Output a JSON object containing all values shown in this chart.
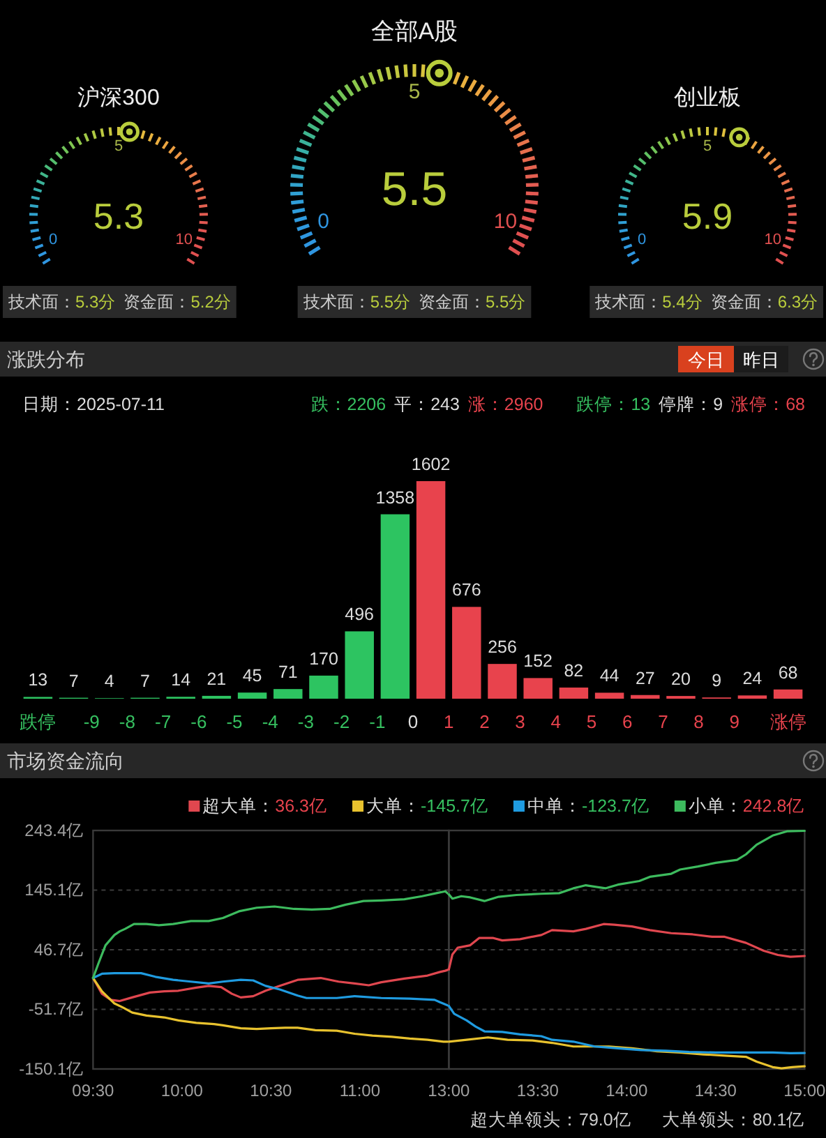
{
  "chart_data": [
    {
      "type": "other",
      "title": "沪深300",
      "values": [
        5.3
      ],
      "data_labels": true,
      "annotations": [
        "0",
        "5",
        "10",
        "技术面：5.3分",
        "资金面：5.2分"
      ]
    },
    {
      "type": "other",
      "title": "全部A股",
      "values": [
        5.5
      ],
      "data_labels": true,
      "annotations": [
        "0",
        "5",
        "10",
        "技术面：5.5分",
        "资金面：5.5分"
      ]
    },
    {
      "type": "other",
      "title": "创业板",
      "values": [
        5.9
      ],
      "data_labels": true,
      "annotations": [
        "0",
        "5",
        "10",
        "技术面：5.4分",
        "资金面：6.3分"
      ]
    },
    {
      "type": "bar",
      "title": "涨跌分布",
      "x": [
        -10.5,
        -9.5,
        -8.5,
        -7.5,
        -6.5,
        -5.5,
        -4.5,
        -3.5,
        -2.5,
        -1.5,
        -0.5,
        0.5,
        1.5,
        2.5,
        3.5,
        4.5,
        5.5,
        6.5,
        7.5,
        8.5,
        9.5,
        10.5
      ],
      "values": [
        13,
        7,
        4,
        7,
        14,
        21,
        45,
        71,
        170,
        496,
        1358,
        1602,
        676,
        256,
        152,
        82,
        44,
        27,
        20,
        9,
        24,
        68
      ],
      "colors": [
        "#2dc461",
        "#2dc461",
        "#2dc461",
        "#2dc461",
        "#2dc461",
        "#2dc461",
        "#2dc461",
        "#2dc461",
        "#2dc461",
        "#2dc461",
        "#2dc461",
        "#e8434d",
        "#e8434d",
        "#e8434d",
        "#e8434d",
        "#e8434d",
        "#e8434d",
        "#e8434d",
        "#e8434d",
        "#e8434d",
        "#e8434d",
        "#e8434d"
      ],
      "xlim": [
        -10.5,
        10.5
      ],
      "xticks": [
        {
          "value": -10.5,
          "label": "跌停"
        },
        -9,
        -8,
        -7,
        -6,
        -5,
        -4,
        -3,
        -2,
        -1,
        0,
        1,
        2,
        3,
        4,
        5,
        6,
        7,
        8,
        9,
        {
          "value": 10.5,
          "label": "涨停"
        }
      ],
      "data_labels": true,
      "annotations": [
        "今日",
        "昨日",
        "日期：2025-07-11",
        "跌：2206",
        "平：243",
        "涨：2960",
        "跌停：13",
        "停牌：9",
        "涨停：68"
      ]
    },
    {
      "type": "line",
      "title": "市场资金流向",
      "series": [
        {
          "name": "超大单：36.3亿",
          "color": "#e0474f",
          "x": [
            9.5,
            9.55,
            9.6,
            9.65,
            9.72,
            9.82,
            9.9,
            9.98,
            10.08,
            10.15,
            10.22,
            10.28,
            10.33,
            10.4,
            10.47,
            10.55,
            10.65,
            10.78,
            10.88,
            10.97,
            11.05,
            11.12,
            11.25,
            11.38,
            11.45,
            11.48,
            11.5
          ],
          "values": [
            0,
            -26,
            -36,
            -38,
            -32,
            -24,
            -22,
            -21,
            -16,
            -13,
            -15,
            -26,
            -32,
            -30,
            -21,
            -13,
            -3,
            0,
            -6,
            -9,
            -12,
            -7,
            -1,
            4,
            10,
            12,
            14
          ]
        },
        {
          "name": "大单：-145.7亿",
          "color": "#e8c22e",
          "x": [
            9.5,
            9.55,
            9.62,
            9.67,
            9.72,
            9.8,
            9.9,
            9.98,
            10.08,
            10.18,
            10.23,
            10.33,
            10.42,
            10.5,
            10.58,
            10.65,
            10.75,
            10.87,
            10.97,
            11.07,
            11.18,
            11.28,
            11.38,
            11.47,
            11.5
          ],
          "values": [
            0,
            -22,
            -42,
            -49,
            -57,
            -62,
            -65,
            -70,
            -74,
            -76,
            -78,
            -83,
            -84,
            -83,
            -82,
            -82,
            -86,
            -87,
            -92,
            -95,
            -97,
            -100,
            -102,
            -105,
            -105
          ]
        },
        {
          "name": "中单：-123.7亿",
          "color": "#1f9be0",
          "x": [
            9.5,
            9.55,
            9.62,
            9.72,
            9.77,
            9.85,
            9.95,
            10.05,
            10.15,
            10.23,
            10.33,
            10.4,
            10.47,
            10.55,
            10.65,
            10.7,
            10.87,
            10.97,
            11.12,
            11.28,
            11.42,
            11.45,
            11.5
          ],
          "values": [
            0,
            7,
            8,
            8,
            8,
            2,
            -3,
            -6,
            -9,
            -6,
            -3,
            -4,
            -13,
            -19,
            -29,
            -33,
            -33,
            -30,
            -33,
            -34,
            -36,
            -40,
            -46
          ]
        },
        {
          "name": "小单：242.8亿",
          "color": "#3dbb5e",
          "x": [
            9.5,
            9.53,
            9.57,
            9.62,
            9.65,
            9.68,
            9.73,
            9.8,
            9.87,
            9.95,
            10.05,
            10.15,
            10.23,
            10.32,
            10.42,
            10.52,
            10.63,
            10.73,
            10.83,
            10.92,
            11.02,
            11.12,
            11.25,
            11.35,
            11.43,
            11.48,
            11.5
          ],
          "values": [
            0,
            24,
            54,
            71,
            77,
            81,
            89,
            89,
            87,
            89,
            94,
            94,
            99,
            110,
            116,
            118,
            114,
            113,
            114,
            121,
            127,
            128,
            130,
            135,
            140,
            143,
            138
          ]
        }
      ],
      "xlim": [
        9.5,
        11.5
      ],
      "xticks": [
        {
          "value": 9.5,
          "label": "09:30"
        },
        {
          "value": 10,
          "label": "10:00"
        },
        {
          "value": 10.5,
          "label": "10:30"
        },
        {
          "value": 11,
          "label": "11:00"
        }
      ],
      "ylim": [
        -150.1,
        243.4
      ],
      "yticks": [
        {
          "value": -150.1,
          "label": "-150.1亿"
        },
        {
          "value": -51.7,
          "label": "-51.7亿"
        },
        {
          "value": 46.7,
          "label": "46.7亿"
        },
        {
          "value": 145.1,
          "label": "145.1亿"
        },
        {
          "value": 243.4,
          "label": "243.4亿"
        }
      ],
      "grid": "y",
      "legend": "top right"
    },
    {
      "type": "line",
      "series": [
        {
          "color": "#e0474f",
          "x": [
            13,
            13.02,
            13.05,
            13.12,
            13.17,
            13.25,
            13.3,
            13.4,
            13.52,
            13.58,
            13.7,
            13.77,
            13.87,
            13.93,
            14.03,
            14.13,
            14.25,
            14.37,
            14.48,
            14.55,
            14.67,
            14.77,
            14.85,
            14.92,
            15
          ],
          "values": [
            14,
            39,
            50,
            54,
            66,
            66,
            62,
            64,
            71,
            79,
            77,
            81,
            89,
            88,
            85,
            79,
            74,
            72,
            68,
            68,
            58,
            45,
            38,
            35,
            36.3
          ]
        },
        {
          "color": "#e8c22e",
          "x": [
            13,
            13.1,
            13.22,
            13.33,
            13.47,
            13.58,
            13.7,
            13.8,
            13.9,
            14.03,
            14.17,
            14.3,
            14.43,
            14.55,
            14.67,
            14.73,
            14.82,
            14.87,
            14.93,
            15
          ],
          "values": [
            -105,
            -102,
            -98,
            -102,
            -103,
            -107,
            -113,
            -113,
            -113,
            -116,
            -121,
            -123,
            -126,
            -128,
            -130,
            -138,
            -147,
            -149,
            -147,
            -145.7
          ]
        },
        {
          "color": "#1f9be0",
          "x": [
            13,
            13.03,
            13.1,
            13.15,
            13.2,
            13.3,
            13.4,
            13.52,
            13.58,
            13.7,
            13.82,
            13.95,
            14.08,
            14.22,
            14.35,
            14.5,
            14.67,
            14.82,
            14.92,
            15
          ],
          "values": [
            -46,
            -59,
            -70,
            -80,
            -88,
            -89,
            -93,
            -96,
            -102,
            -105,
            -113,
            -116,
            -119,
            -120,
            -122,
            -123,
            -123,
            -123,
            -124,
            -123.7
          ]
        },
        {
          "color": "#3dbb5e",
          "x": [
            13,
            13.02,
            13.07,
            13.12,
            13.2,
            13.28,
            13.38,
            13.52,
            13.62,
            13.7,
            13.77,
            13.88,
            13.95,
            14.07,
            14.13,
            14.25,
            14.3,
            14.4,
            14.5,
            14.62,
            14.67,
            14.73,
            14.82,
            14.9,
            15
          ],
          "values": [
            138,
            131,
            135,
            133,
            127,
            134,
            137,
            139,
            140,
            148,
            153,
            148,
            154,
            160,
            167,
            172,
            179,
            184,
            190,
            195,
            204,
            220,
            235,
            242,
            242.8
          ]
        }
      ],
      "xlim": [
        13,
        15
      ],
      "xticks": [
        {
          "value": 13,
          "label": "13:00"
        },
        {
          "value": 13.5,
          "label": "13:30"
        },
        {
          "value": 14,
          "label": "14:00"
        },
        {
          "value": 14.5,
          "label": "14:30"
        },
        {
          "value": 15,
          "label": "15:00"
        }
      ],
      "ylim": [
        -150.1,
        243.4
      ],
      "yticks": [
        -150.1,
        -51.7,
        46.7,
        145.1,
        243.4
      ],
      "tick_labels": "x",
      "grid": "y",
      "annotations": [
        "超大单领头：79.0亿",
        "大单领头：80.1亿"
      ]
    }
  ]
}
